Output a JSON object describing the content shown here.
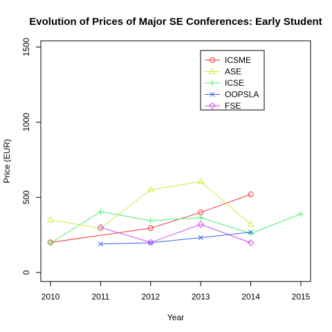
{
  "chart_data": {
    "type": "line",
    "title": "Evolution of Prices of Major SE Conferences: Early Student",
    "xlabel": "Year",
    "ylabel": "Price (EUR)",
    "xlim": [
      2010,
      2015
    ],
    "ylim": [
      0,
      1500
    ],
    "x_ticks": [
      "2010",
      "2011",
      "2012",
      "2013",
      "2014",
      "2015"
    ],
    "y_ticks": [
      "0",
      "500",
      "1000",
      "1500"
    ],
    "grid": false,
    "legend_position": "top-right",
    "series": [
      {
        "name": "ICSME",
        "color": "#ee3333",
        "marker": "circle",
        "points": [
          [
            2010,
            200
          ],
          [
            2012,
            295
          ],
          [
            2013,
            400
          ],
          [
            2014,
            520
          ]
        ]
      },
      {
        "name": "ASE",
        "color": "#ccee33",
        "marker": "triangle",
        "points": [
          [
            2010,
            350
          ],
          [
            2011,
            295
          ],
          [
            2012,
            550
          ],
          [
            2013,
            605
          ],
          [
            2014,
            320
          ]
        ]
      },
      {
        "name": "ICSE",
        "color": "#44ee66",
        "marker": "plus",
        "points": [
          [
            2010,
            195
          ],
          [
            2011,
            405
          ],
          [
            2012,
            345
          ],
          [
            2013,
            365
          ],
          [
            2014,
            260
          ],
          [
            2015,
            390
          ]
        ]
      },
      {
        "name": "OOPSLA",
        "color": "#3366ee",
        "marker": "cross",
        "points": [
          [
            2011,
            190
          ],
          [
            2012,
            198
          ],
          [
            2013,
            232
          ],
          [
            2014,
            268
          ]
        ]
      },
      {
        "name": "FSE",
        "color": "#cc44ee",
        "marker": "diamond",
        "points": [
          [
            2011,
            300
          ],
          [
            2012,
            200
          ],
          [
            2013,
            320
          ],
          [
            2014,
            198
          ]
        ]
      }
    ]
  }
}
